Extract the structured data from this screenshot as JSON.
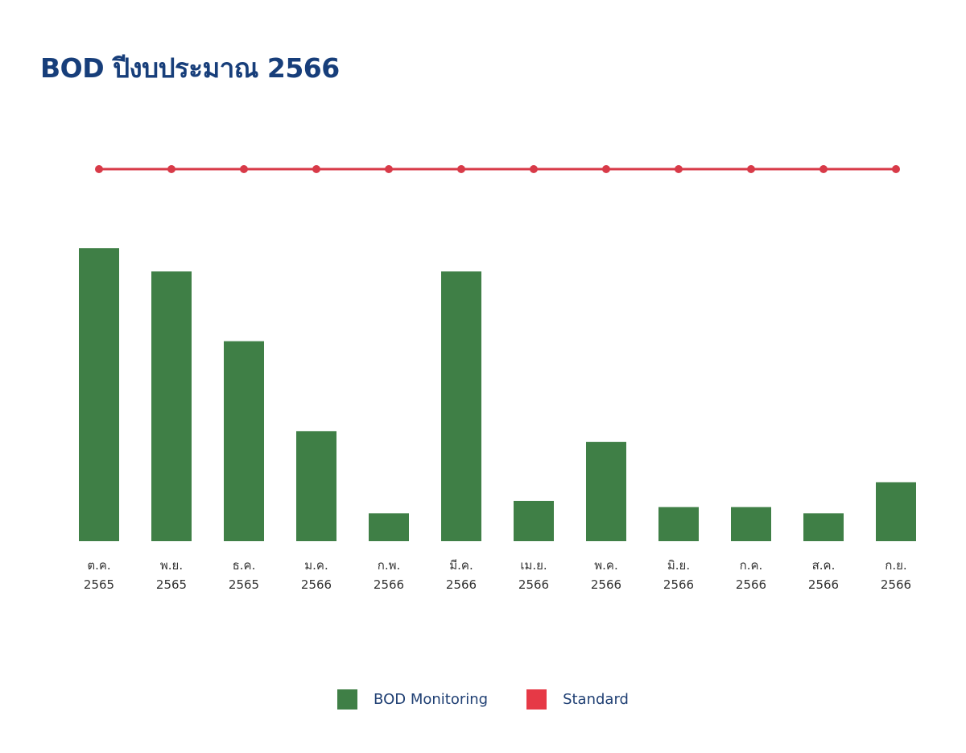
{
  "colors": {
    "title": "#173e7a",
    "bar": "#3f7f46",
    "standard": "#d83a48",
    "legend_bar": "#3f7f46",
    "legend_standard": "#e63946",
    "legend_text": "#1f3f73",
    "tick_text": "#333333"
  },
  "chart_data": {
    "type": "bar",
    "title": "BOD ปีงบประมาณ 2566",
    "xlabel": "",
    "ylabel": "",
    "grid": false,
    "legend_position": "bottom",
    "ylim": [
      0,
      25
    ],
    "categories": [
      [
        "ต.ค.",
        "2565"
      ],
      [
        "พ.ย.",
        "2565"
      ],
      [
        "ธ.ค.",
        "2565"
      ],
      [
        "ม.ค.",
        "2566"
      ],
      [
        "ก.พ.",
        "2566"
      ],
      [
        "มี.ค.",
        "2566"
      ],
      [
        "เม.ย.",
        "2566"
      ],
      [
        "พ.ค.",
        "2566"
      ],
      [
        "มิ.ย.",
        "2566"
      ],
      [
        "ก.ค.",
        "2566"
      ],
      [
        "ส.ค.",
        "2566"
      ],
      [
        "ก.ย.",
        "2566"
      ]
    ],
    "series": [
      {
        "name": "BOD Monitoring",
        "type": "bar",
        "values": [
          18.9,
          17.4,
          12.9,
          7.1,
          1.8,
          17.4,
          2.6,
          6.4,
          2.2,
          2.2,
          1.8,
          3.8
        ]
      },
      {
        "name": "Standard",
        "type": "line",
        "values": [
          24,
          24,
          24,
          24,
          24,
          24,
          24,
          24,
          24,
          24,
          24,
          24
        ]
      }
    ]
  }
}
